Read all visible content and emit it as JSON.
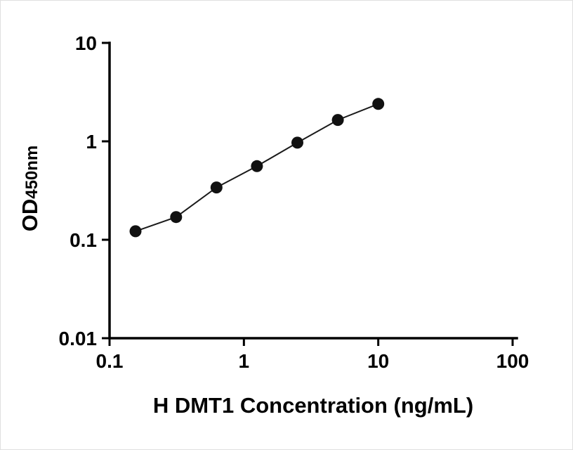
{
  "figure": {
    "background": "#ffffff",
    "border_color": "#e0e0e0"
  },
  "chart_data": {
    "type": "scatter",
    "title": "",
    "xlabel": "H DMT1 Concentration (ng/mL)",
    "ylabel_main": "OD",
    "ylabel_sub": "450nm",
    "x_scale": "log",
    "y_scale": "log",
    "xlim": [
      0.1,
      100
    ],
    "ylim": [
      0.01,
      10
    ],
    "grid": false,
    "legend": "none",
    "axis_color": "#000000",
    "marker_color": "#111111",
    "line_color": "#1a1a1a",
    "marker_radius": 8.5,
    "x_ticks": [
      {
        "value": 0.1,
        "label": "0.1"
      },
      {
        "value": 1,
        "label": "1"
      },
      {
        "value": 10,
        "label": "10"
      },
      {
        "value": 100,
        "label": "100"
      }
    ],
    "y_ticks": [
      {
        "value": 0.01,
        "label": "0.01"
      },
      {
        "value": 0.1,
        "label": "0.1"
      },
      {
        "value": 1,
        "label": "1"
      },
      {
        "value": 10,
        "label": "10"
      }
    ],
    "points": [
      {
        "x": 0.156,
        "y": 0.122
      },
      {
        "x": 0.313,
        "y": 0.17
      },
      {
        "x": 0.625,
        "y": 0.34
      },
      {
        "x": 1.25,
        "y": 0.56
      },
      {
        "x": 2.5,
        "y": 0.97
      },
      {
        "x": 5,
        "y": 1.65
      },
      {
        "x": 10,
        "y": 2.4
      }
    ]
  }
}
